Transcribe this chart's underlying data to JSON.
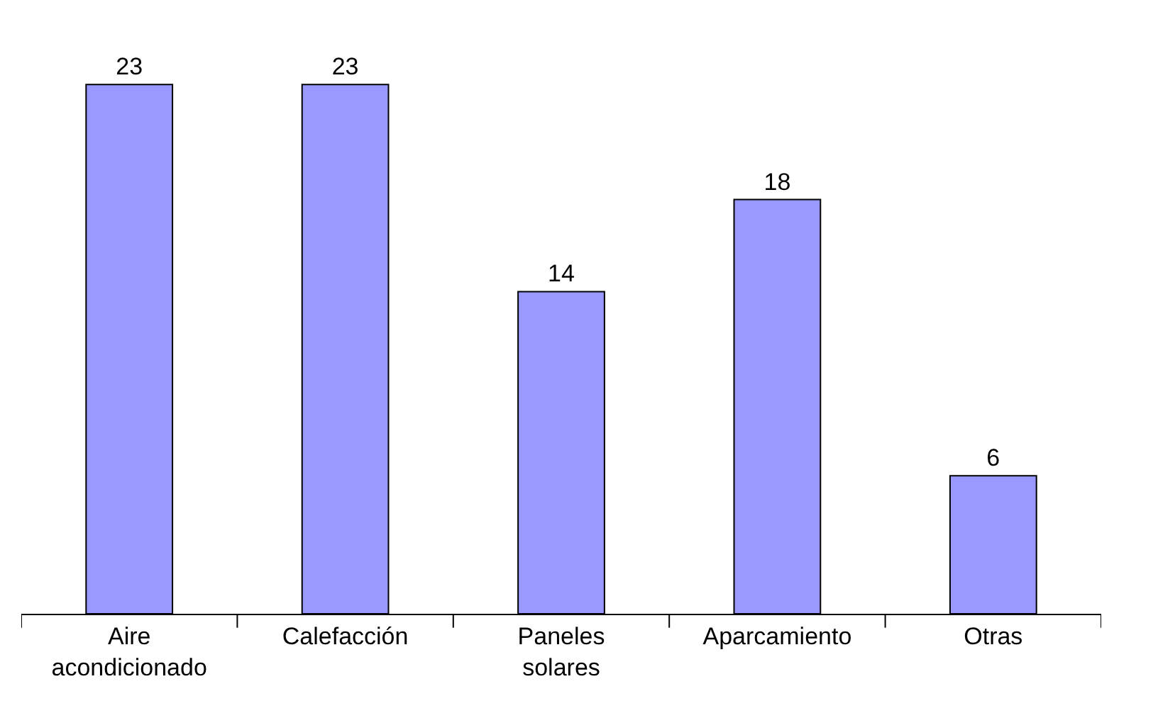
{
  "chart_data": {
    "type": "bar",
    "categories": [
      "Aire acondicionado",
      "Calefacción",
      "Paneles solares",
      "Aparcamiento",
      "Otras"
    ],
    "values": [
      23,
      23,
      14,
      18,
      6
    ],
    "color": "#9999ff",
    "data_labels": true
  }
}
